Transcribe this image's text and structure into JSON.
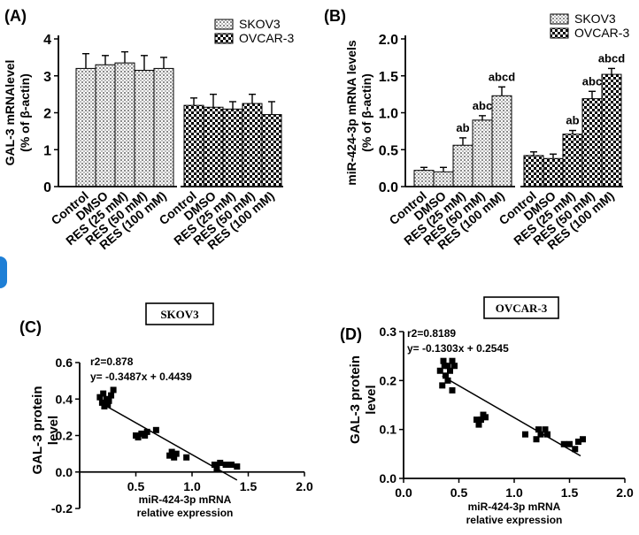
{
  "panels": {
    "A": "(A)",
    "B": "(B)",
    "C": "(C)",
    "D": "(D)"
  },
  "boxes": {
    "C": "SKOV3",
    "D": "OVCAR-3"
  },
  "colors": {
    "axis": "#000000",
    "skov3_fill": "#d9d9d9",
    "ovcar3_fill": "#000000",
    "side_marker": "#1e7fd6"
  },
  "chart_data": [
    {
      "type": "bar",
      "panel": "A",
      "categories": [
        "Control",
        "DMSO",
        "RES (25 mM)",
        "RES (50 mM)",
        "RES (100 mM)"
      ],
      "series": [
        {
          "name": "SKOV3",
          "values": [
            3.2,
            3.3,
            3.35,
            3.15,
            3.2
          ],
          "errors": [
            0.4,
            0.25,
            0.3,
            0.4,
            0.3
          ],
          "pattern": "dots"
        },
        {
          "name": "OVCAR-3",
          "values": [
            2.2,
            2.15,
            2.1,
            2.25,
            1.95
          ],
          "errors": [
            0.2,
            0.35,
            0.2,
            0.25,
            0.35
          ],
          "pattern": "checker"
        }
      ],
      "ylabel_line1": "GAL-3 mRNAlevel",
      "ylabel_line2": "(% of β-actin)",
      "ylim": [
        0,
        4
      ],
      "yticks": [
        0,
        1,
        2,
        3,
        4
      ],
      "annotations": [],
      "legend": "top-right"
    },
    {
      "type": "bar",
      "panel": "B",
      "categories": [
        "Control",
        "DMSO",
        "RES (25 mM)",
        "RES (50 mM)",
        "RES (100 mM)"
      ],
      "series": [
        {
          "name": "SKOV3",
          "values": [
            0.22,
            0.2,
            0.56,
            0.9,
            1.23
          ],
          "errors": [
            0.04,
            0.06,
            0.1,
            0.06,
            0.12
          ],
          "pattern": "dots"
        },
        {
          "name": "OVCAR-3",
          "values": [
            0.42,
            0.38,
            0.71,
            1.19,
            1.52
          ],
          "errors": [
            0.05,
            0.06,
            0.05,
            0.1,
            0.08
          ],
          "pattern": "checker"
        }
      ],
      "ylabel_line1": "miR-424-3p mRNA levels",
      "ylabel_line2": "(% of β-actin)",
      "ylim": [
        0,
        2.0
      ],
      "yticks": [
        "0.0",
        "0.5",
        "1.0",
        "1.5",
        "2.0"
      ],
      "annotations": [
        {
          "series": 0,
          "index": 2,
          "text": "ab"
        },
        {
          "series": 0,
          "index": 3,
          "text": "abc"
        },
        {
          "series": 0,
          "index": 4,
          "text": "abcd"
        },
        {
          "series": 1,
          "index": 2,
          "text": "ab"
        },
        {
          "series": 1,
          "index": 3,
          "text": "abc"
        },
        {
          "series": 1,
          "index": 4,
          "text": "abcd"
        }
      ],
      "legend": "top-right"
    },
    {
      "type": "scatter",
      "panel": "C",
      "points": [
        [
          0.18,
          0.41
        ],
        [
          0.2,
          0.38
        ],
        [
          0.22,
          0.36
        ],
        [
          0.24,
          0.4
        ],
        [
          0.26,
          0.39
        ],
        [
          0.28,
          0.42
        ],
        [
          0.3,
          0.45
        ],
        [
          0.25,
          0.37
        ],
        [
          0.21,
          0.43
        ],
        [
          0.5,
          0.2
        ],
        [
          0.52,
          0.19
        ],
        [
          0.55,
          0.21
        ],
        [
          0.58,
          0.2
        ],
        [
          0.6,
          0.22
        ],
        [
          0.68,
          0.23
        ],
        [
          0.8,
          0.09
        ],
        [
          0.82,
          0.11
        ],
        [
          0.84,
          0.08
        ],
        [
          0.86,
          0.1
        ],
        [
          0.95,
          0.08
        ],
        [
          1.2,
          0.04
        ],
        [
          1.22,
          0.02
        ],
        [
          1.25,
          0.05
        ],
        [
          1.3,
          0.04
        ],
        [
          1.35,
          0.04
        ],
        [
          1.4,
          0.03
        ]
      ],
      "regression": {
        "slope": -0.3487,
        "intercept": 0.4439,
        "x_range": [
          0.2,
          1.4
        ]
      },
      "r2_text": "r2=0.878",
      "eq_text": "y= -0.3487x + 0.4439",
      "xlabel_line1": "miR-424-3p mRNA",
      "xlabel_line2": "relative expression",
      "ylabel_line1": "GAL-3 protein",
      "ylabel_line2": "level",
      "xlim": [
        0,
        2.0
      ],
      "ylim": [
        -0.2,
        0.6
      ],
      "xticks": [
        "0.5",
        "1.0",
        "1.5",
        "2.0"
      ],
      "yticks": [
        "-0.2",
        "0.0",
        "0.2",
        "0.4",
        "0.6"
      ]
    },
    {
      "type": "scatter",
      "panel": "D",
      "points": [
        [
          0.33,
          0.22
        ],
        [
          0.35,
          0.19
        ],
        [
          0.36,
          0.24
        ],
        [
          0.38,
          0.21
        ],
        [
          0.4,
          0.23
        ],
        [
          0.42,
          0.22
        ],
        [
          0.44,
          0.24
        ],
        [
          0.46,
          0.23
        ],
        [
          0.4,
          0.2
        ],
        [
          0.44,
          0.18
        ],
        [
          0.37,
          0.23
        ],
        [
          0.66,
          0.12
        ],
        [
          0.68,
          0.11
        ],
        [
          0.7,
          0.12
        ],
        [
          0.72,
          0.13
        ],
        [
          0.74,
          0.125
        ],
        [
          1.1,
          0.09
        ],
        [
          1.2,
          0.08
        ],
        [
          1.22,
          0.1
        ],
        [
          1.24,
          0.09
        ],
        [
          1.28,
          0.1
        ],
        [
          1.3,
          0.09
        ],
        [
          1.45,
          0.07
        ],
        [
          1.5,
          0.07
        ],
        [
          1.55,
          0.06
        ],
        [
          1.58,
          0.075
        ],
        [
          1.62,
          0.08
        ]
      ],
      "regression": {
        "slope": -0.1303,
        "intercept": 0.2545,
        "x_range": [
          0.35,
          1.6
        ]
      },
      "r2_text": "r2=0.8189",
      "eq_text": "y= -0.1303x + 0.2545",
      "xlabel_line1": "miR-424-3p mRNA",
      "xlabel_line2": "relative expression",
      "ylabel_line1": "GAL-3 protein",
      "ylabel_line2": "level",
      "xlim": [
        0,
        2.0
      ],
      "ylim": [
        0,
        0.3
      ],
      "xticks": [
        "0.0",
        "0.5",
        "1.0",
        "1.5",
        "2.0"
      ],
      "yticks": [
        "0.0",
        "0.1",
        "0.2",
        "0.3"
      ]
    }
  ]
}
